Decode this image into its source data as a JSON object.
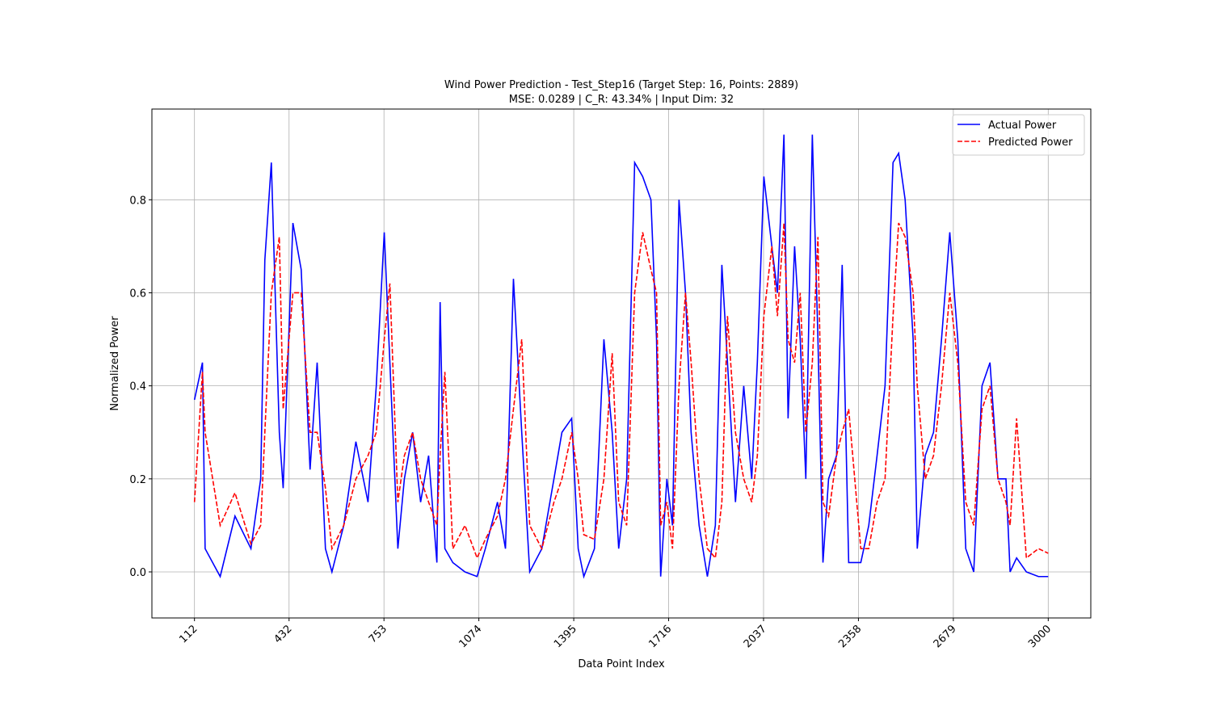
{
  "chart_data": {
    "type": "line",
    "title": "Wind Power Prediction - Test_Step16 (Target Step: 16, Points: 2889)",
    "subtitle": "MSE: 0.0289 | C_R: 43.34% | Input Dim: 32",
    "x_label": "Data Point Index",
    "y_label": "Normalized Power",
    "x": [
      112,
      139,
      148,
      199,
      249,
      303,
      336,
      350,
      372,
      399,
      412,
      445,
      473,
      503,
      527,
      555,
      577,
      617,
      658,
      699,
      727,
      754,
      773,
      800,
      822,
      850,
      877,
      904,
      932,
      943,
      959,
      986,
      1027,
      1068,
      1096,
      1137,
      1164,
      1191,
      1219,
      1246,
      1287,
      1328,
      1355,
      1388,
      1410,
      1429,
      1465,
      1497,
      1525,
      1547,
      1574,
      1601,
      1628,
      1656,
      1675,
      1689,
      1710,
      1729,
      1751,
      1773,
      1792,
      1819,
      1847,
      1874,
      1896,
      1915,
      1942,
      1970,
      1997,
      2016,
      2038,
      2065,
      2084,
      2106,
      2120,
      2142,
      2161,
      2180,
      2202,
      2221,
      2238,
      2257,
      2284,
      2303,
      2325,
      2366,
      2393,
      2421,
      2448,
      2475,
      2494,
      2516,
      2543,
      2557,
      2584,
      2612,
      2639,
      2667,
      2694,
      2721,
      2748,
      2776,
      2803,
      2830,
      2857,
      2871,
      2893,
      2926,
      2967,
      3000
    ],
    "series": [
      {
        "name": "Actual Power",
        "color": "#0000ff",
        "dash": false,
        "values": [
          0.37,
          0.45,
          0.05,
          -0.01,
          0.12,
          0.05,
          0.2,
          0.67,
          0.88,
          0.3,
          0.18,
          0.75,
          0.65,
          0.22,
          0.45,
          0.05,
          0.0,
          0.1,
          0.28,
          0.15,
          0.4,
          0.73,
          0.45,
          0.05,
          0.2,
          0.3,
          0.15,
          0.25,
          0.02,
          0.58,
          0.05,
          0.02,
          0.0,
          -0.01,
          0.05,
          0.15,
          0.05,
          0.63,
          0.3,
          0.0,
          0.05,
          0.2,
          0.3,
          0.33,
          0.05,
          -0.01,
          0.05,
          0.5,
          0.3,
          0.05,
          0.2,
          0.88,
          0.85,
          0.8,
          0.5,
          -0.01,
          0.2,
          0.1,
          0.8,
          0.6,
          0.3,
          0.1,
          -0.01,
          0.1,
          0.66,
          0.45,
          0.15,
          0.4,
          0.2,
          0.45,
          0.85,
          0.7,
          0.6,
          0.94,
          0.33,
          0.7,
          0.5,
          0.2,
          0.94,
          0.5,
          0.02,
          0.2,
          0.25,
          0.66,
          0.02,
          0.02,
          0.1,
          0.25,
          0.4,
          0.88,
          0.9,
          0.8,
          0.5,
          0.05,
          0.25,
          0.3,
          0.5,
          0.73,
          0.5,
          0.05,
          0.0,
          0.4,
          0.45,
          0.2,
          0.2,
          0.0,
          0.03,
          0.0,
          -0.01,
          -0.01
        ]
      },
      {
        "name": "Predicted Power",
        "color": "#ff0000",
        "dash": true,
        "values": [
          0.15,
          0.43,
          0.3,
          0.1,
          0.17,
          0.06,
          0.1,
          0.3,
          0.6,
          0.72,
          0.35,
          0.6,
          0.6,
          0.3,
          0.3,
          0.18,
          0.05,
          0.1,
          0.2,
          0.25,
          0.3,
          0.5,
          0.62,
          0.15,
          0.25,
          0.3,
          0.2,
          0.15,
          0.1,
          0.25,
          0.43,
          0.05,
          0.1,
          0.03,
          0.07,
          0.12,
          0.2,
          0.35,
          0.5,
          0.1,
          0.05,
          0.15,
          0.2,
          0.3,
          0.2,
          0.08,
          0.07,
          0.2,
          0.47,
          0.15,
          0.1,
          0.6,
          0.73,
          0.65,
          0.6,
          0.1,
          0.15,
          0.05,
          0.4,
          0.6,
          0.45,
          0.2,
          0.05,
          0.03,
          0.15,
          0.55,
          0.3,
          0.2,
          0.15,
          0.25,
          0.55,
          0.7,
          0.55,
          0.75,
          0.5,
          0.45,
          0.6,
          0.3,
          0.45,
          0.72,
          0.15,
          0.12,
          0.25,
          0.3,
          0.35,
          0.05,
          0.05,
          0.15,
          0.2,
          0.55,
          0.75,
          0.72,
          0.6,
          0.4,
          0.2,
          0.25,
          0.4,
          0.6,
          0.45,
          0.15,
          0.1,
          0.35,
          0.4,
          0.2,
          0.15,
          0.1,
          0.33,
          0.03,
          0.05,
          0.04
        ]
      }
    ],
    "xlim": [
      -32,
      3144
    ],
    "ylim": [
      -0.099,
      0.995
    ],
    "xticks": [
      112,
      432,
      753,
      1074,
      1395,
      1716,
      2037,
      2358,
      2679,
      3000
    ],
    "yticks": [
      {
        "value": 0,
        "label": "0.0"
      },
      0.2,
      0.4,
      0.6,
      0.8
    ],
    "grid": true,
    "legend": "upper right"
  }
}
